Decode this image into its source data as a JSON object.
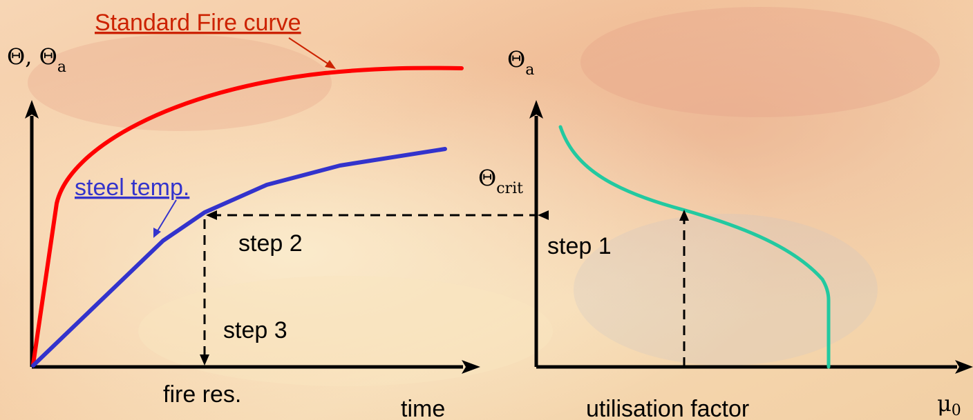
{
  "labels": {
    "standard_fire_curve": "Standard Fire curve",
    "steel_temp": "steel temp.",
    "left_axis_y": "Θ, Θ",
    "left_axis_y_sub": "a",
    "right_axis_y": "Θ",
    "right_axis_y_sub": "a",
    "theta_crit": "Θ",
    "theta_crit_sub": "crit",
    "step1": "step 1",
    "step2": "step 2",
    "step3": "step 3",
    "fire_res": "fire res.",
    "time": "time",
    "utilisation_factor": "utilisation factor",
    "mu": "μ",
    "mu_sub": "0"
  },
  "colors": {
    "standard_fire": "#ff0000",
    "steel_temp": "#3333cc",
    "critical_curve": "#22c9a0",
    "standard_fire_label": "#cc2200",
    "steel_temp_label": "#3333cc",
    "axes": "#000000"
  }
}
